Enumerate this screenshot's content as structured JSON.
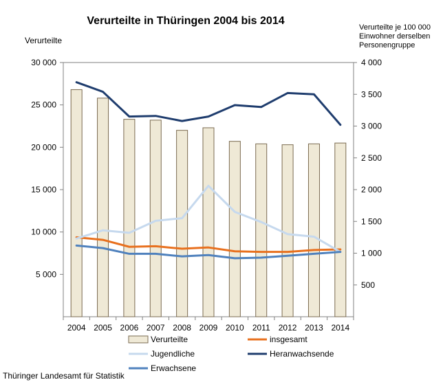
{
  "chart_data": {
    "type": "bar+line",
    "title": "Verurteilte in Thüringen 2004 bis 2014",
    "ylabel_left": "Verurteilte",
    "ylabel_right": "Verurteilte je 100 000 Einwohner derselben Personengruppe",
    "categories": [
      "2004",
      "2005",
      "2006",
      "2007",
      "2008",
      "2009",
      "2010",
      "2011",
      "2012",
      "2013",
      "2014"
    ],
    "ylim_left": [
      0,
      30000
    ],
    "ylim_right": [
      0,
      4000
    ],
    "yticks_left": [
      {
        "value": 5000,
        "label": "5 000"
      },
      {
        "value": 10000,
        "label": "10 000"
      },
      {
        "value": 15000,
        "label": "15 000"
      },
      {
        "value": 20000,
        "label": "20 000"
      },
      {
        "value": 25000,
        "label": "25 000"
      },
      {
        "value": 30000,
        "label": "30 000"
      }
    ],
    "yticks_right": [
      {
        "value": 500,
        "label": "500"
      },
      {
        "value": 1000,
        "label": "1 000"
      },
      {
        "value": 1500,
        "label": "1 500"
      },
      {
        "value": 2000,
        "label": "2 000"
      },
      {
        "value": 2500,
        "label": "2 500"
      },
      {
        "value": 3000,
        "label": "3 000"
      },
      {
        "value": 3500,
        "label": "3 500"
      },
      {
        "value": 4000,
        "label": "4 000"
      }
    ],
    "bars": {
      "name": "Verurteilte",
      "axis": "left",
      "color": "#efe9d6",
      "edge": "#7a6a50",
      "values": [
        26800,
        25800,
        23300,
        23200,
        22000,
        22300,
        20700,
        20400,
        20300,
        20400,
        20500
      ]
    },
    "lines": [
      {
        "name": "insgesamt",
        "axis": "right",
        "color": "#e8701e",
        "values": [
          1250,
          1210,
          1100,
          1110,
          1070,
          1090,
          1030,
          1020,
          1020,
          1050,
          1060
        ]
      },
      {
        "name": "Jugendliche",
        "axis": "right",
        "color": "#c6d9ee",
        "values": [
          1230,
          1360,
          1320,
          1510,
          1550,
          2060,
          1650,
          1490,
          1300,
          1260,
          1020
        ]
      },
      {
        "name": "Heranwachsende",
        "axis": "right",
        "color": "#1f3d6e",
        "values": [
          3690,
          3540,
          3150,
          3160,
          3080,
          3150,
          3330,
          3300,
          3520,
          3500,
          3020
        ]
      },
      {
        "name": "Erwachsene",
        "axis": "right",
        "color": "#4f81bd",
        "values": [
          1120,
          1080,
          990,
          990,
          950,
          970,
          920,
          930,
          960,
          990,
          1020
        ]
      }
    ],
    "legend_placement": "bottom",
    "grid": false
  },
  "source": "Thüringer Landesamt für Statistik"
}
